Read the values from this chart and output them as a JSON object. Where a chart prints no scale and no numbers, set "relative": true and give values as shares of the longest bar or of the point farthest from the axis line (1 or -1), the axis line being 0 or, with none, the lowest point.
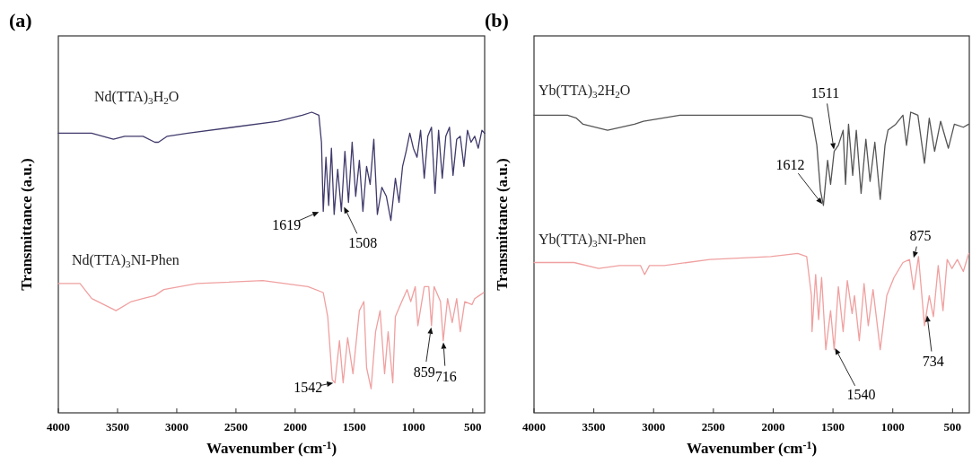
{
  "chart_data": [
    {
      "type": "line",
      "title": "(a)",
      "xlabel": "Wavenumber (cm$^{-1}$)",
      "ylabel": "Transmittance (a.u.)",
      "relative": true,
      "xlim": [
        4000,
        400
      ],
      "xticks": [
        4000,
        3500,
        3000,
        2500,
        2000,
        1500,
        1000,
        500
      ],
      "series": [
        {
          "name": "Nd(TTA)$_{3}$H$_{2}$O",
          "color": "#3f3a6b",
          "x": [
            4000,
            3720,
            3535,
            3440,
            3285,
            3185,
            3155,
            3080,
            2905,
            2525,
            2145,
            1940,
            1860,
            1800,
            1778,
            1763,
            1740,
            1717,
            1694,
            1671,
            1641,
            1610,
            1580,
            1550,
            1519,
            1489,
            1458,
            1428,
            1397,
            1367,
            1336,
            1306,
            1268,
            1230,
            1192,
            1154,
            1123,
            1093,
            1063,
            1032,
            1002,
            971,
            941,
            910,
            880,
            849,
            819,
            789,
            758,
            728,
            697,
            667,
            636,
            606,
            575,
            545,
            515,
            484,
            454,
            423,
            400
          ],
          "values": [
            0.93,
            0.93,
            0.91,
            0.92,
            0.92,
            0.9,
            0.9,
            0.92,
            0.93,
            0.95,
            0.97,
            0.99,
            1.0,
            0.99,
            0.9,
            0.67,
            0.85,
            0.69,
            0.88,
            0.66,
            0.81,
            0.67,
            0.87,
            0.7,
            0.9,
            0.72,
            0.84,
            0.67,
            0.82,
            0.76,
            0.91,
            0.66,
            0.75,
            0.72,
            0.64,
            0.78,
            0.7,
            0.82,
            0.87,
            0.93,
            0.88,
            0.85,
            0.94,
            0.78,
            0.92,
            0.95,
            0.73,
            0.94,
            0.78,
            0.92,
            0.95,
            0.79,
            0.91,
            0.92,
            0.82,
            0.94,
            0.9,
            0.92,
            0.88,
            0.94,
            0.93
          ]
        },
        {
          "name": "Nd(TTA)$_{3}$NI-Phen",
          "color": "#f0a0a0",
          "x": [
            4000,
            3817,
            3718,
            3513,
            3384,
            3285,
            3186,
            3110,
            2828,
            2273,
            1892,
            1763,
            1725,
            1687,
            1664,
            1626,
            1595,
            1557,
            1512,
            1458,
            1420,
            1397,
            1359,
            1321,
            1283,
            1245,
            1215,
            1176,
            1154,
            1100,
            1055,
            1024,
            986,
            964,
            910,
            872,
            849,
            827,
            773,
            750,
            713,
            674,
            636,
            606,
            568,
            507,
            484,
            446,
            408
          ],
          "values": [
            0.43,
            0.43,
            0.38,
            0.34,
            0.37,
            0.38,
            0.39,
            0.41,
            0.43,
            0.44,
            0.42,
            0.4,
            0.32,
            0.11,
            0.1,
            0.24,
            0.1,
            0.25,
            0.13,
            0.34,
            0.37,
            0.15,
            0.08,
            0.27,
            0.34,
            0.13,
            0.27,
            0.1,
            0.32,
            0.37,
            0.41,
            0.37,
            0.42,
            0.29,
            0.42,
            0.42,
            0.29,
            0.42,
            0.37,
            0.24,
            0.38,
            0.3,
            0.38,
            0.27,
            0.37,
            0.36,
            0.38,
            0.39,
            0.4
          ]
        }
      ],
      "annotations": [
        {
          "text": "1619",
          "x": 1785,
          "y": 0.67
        },
        {
          "text": "1508",
          "x": 1595,
          "y": 0.69
        },
        {
          "text": "1542",
          "x": 1664,
          "y": 0.1
        },
        {
          "text": "859",
          "x": 849,
          "y": 0.29
        },
        {
          "text": "716",
          "x": 750,
          "y": 0.24
        }
      ]
    },
    {
      "type": "line",
      "title": "(b)",
      "xlabel": "Wavenumber (cm$^{-1}$)",
      "ylabel": "Transmittance (a.u.)",
      "relative": true,
      "xlim": [
        4000,
        360
      ],
      "xticks": [
        4000,
        3500,
        3000,
        2500,
        2000,
        1500,
        1000,
        500
      ],
      "series": [
        {
          "name": "Yb(TTA)$_{3}$2H$_{2}$O",
          "color": "#555555",
          "x": [
            4000,
            3720,
            3645,
            3590,
            3385,
            3160,
            3085,
            2780,
            2280,
            1770,
            1675,
            1635,
            1605,
            1580,
            1545,
            1520,
            1490,
            1455,
            1415,
            1395,
            1370,
            1335,
            1305,
            1265,
            1225,
            1190,
            1150,
            1105,
            1065,
            1040,
            975,
            915,
            885,
            850,
            790,
            735,
            695,
            650,
            600,
            535,
            485,
            410,
            365
          ],
          "values": [
            0.99,
            0.99,
            0.98,
            0.96,
            0.94,
            0.96,
            0.97,
            0.99,
            0.99,
            0.99,
            0.98,
            0.89,
            0.74,
            0.69,
            0.84,
            0.76,
            0.87,
            0.89,
            0.94,
            0.76,
            0.96,
            0.79,
            0.94,
            0.73,
            0.91,
            0.77,
            0.9,
            0.71,
            0.89,
            0.94,
            0.96,
            0.99,
            0.89,
            1.0,
            0.99,
            0.83,
            0.98,
            0.87,
            0.97,
            0.88,
            0.96,
            0.95,
            0.96
          ]
        },
        {
          "name": "Yb(TTA)$_{3}$NI-Phen",
          "color": "#f0a0a0",
          "x": [
            4000,
            3665,
            3460,
            3285,
            3110,
            3075,
            3035,
            2910,
            2530,
            2020,
            1795,
            1720,
            1680,
            1675,
            1645,
            1620,
            1595,
            1560,
            1520,
            1490,
            1455,
            1415,
            1380,
            1340,
            1320,
            1280,
            1240,
            1205,
            1165,
            1105,
            1050,
            990,
            915,
            860,
            825,
            785,
            735,
            695,
            660,
            620,
            580,
            545,
            505,
            460,
            410,
            365
          ],
          "values": [
            0.5,
            0.5,
            0.48,
            0.49,
            0.49,
            0.46,
            0.49,
            0.49,
            0.51,
            0.52,
            0.53,
            0.52,
            0.39,
            0.27,
            0.46,
            0.31,
            0.45,
            0.21,
            0.34,
            0.21,
            0.42,
            0.27,
            0.44,
            0.33,
            0.39,
            0.24,
            0.43,
            0.29,
            0.41,
            0.21,
            0.39,
            0.45,
            0.5,
            0.51,
            0.41,
            0.52,
            0.29,
            0.39,
            0.32,
            0.49,
            0.34,
            0.51,
            0.48,
            0.51,
            0.47,
            0.53
          ]
        }
      ],
      "annotations": [
        {
          "text": "1612",
          "x": 1580,
          "y": 0.69
        },
        {
          "text": "1511",
          "x": 1490,
          "y": 0.87
        },
        {
          "text": "875",
          "x": 830,
          "y": 0.51
        },
        {
          "text": "1540",
          "x": 1490,
          "y": 0.22
        },
        {
          "text": "734",
          "x": 715,
          "y": 0.33
        }
      ]
    }
  ]
}
